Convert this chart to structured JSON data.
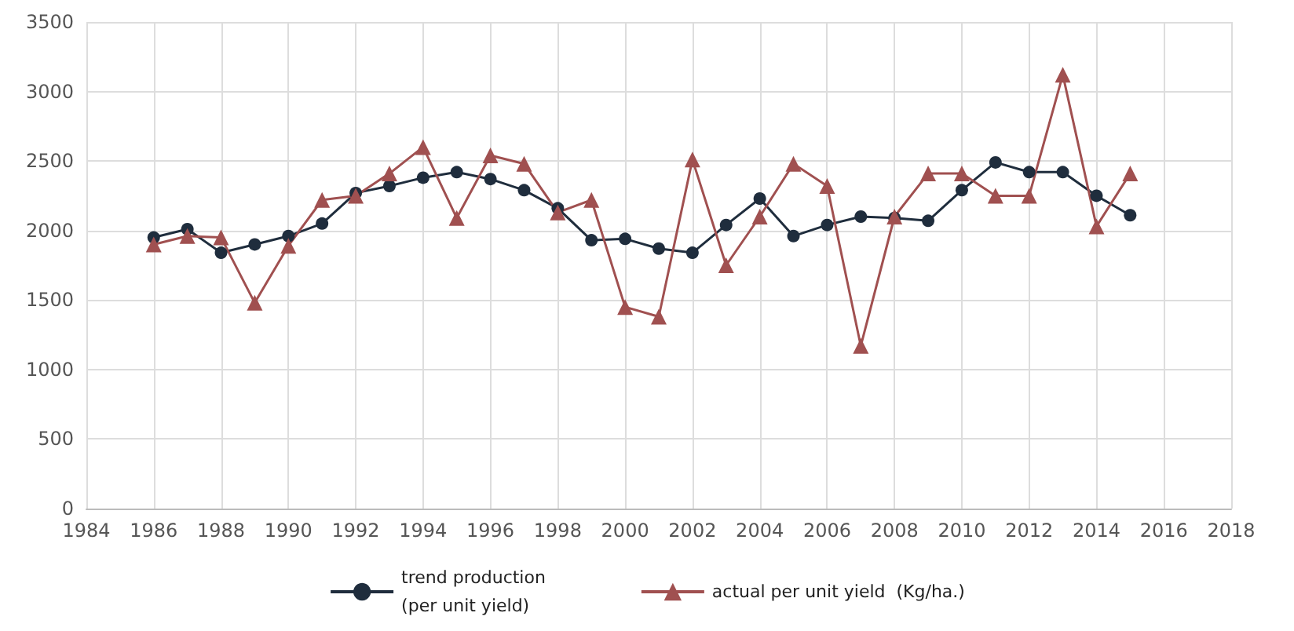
{
  "chart_data": {
    "type": "line",
    "x": [
      1986,
      1987,
      1988,
      1989,
      1990,
      1991,
      1992,
      1993,
      1994,
      1995,
      1996,
      1997,
      1998,
      1999,
      2000,
      2001,
      2002,
      2003,
      2004,
      2005,
      2006,
      2007,
      2008,
      2009,
      2010,
      2011,
      2012,
      2013,
      2014,
      2015
    ],
    "series": [
      {
        "name": "trend production\n(per unit yield)",
        "color": "#1f2d3d",
        "marker": "circle",
        "values": [
          1950,
          2010,
          1840,
          1900,
          1960,
          2050,
          2270,
          2320,
          2380,
          2420,
          2370,
          2290,
          2160,
          1930,
          1940,
          1870,
          1840,
          2040,
          2230,
          1960,
          2040,
          2100,
          2090,
          2070,
          2290,
          2490,
          2420,
          2420,
          2250,
          2110
        ]
      },
      {
        "name": "actual per unit yield  (Kg/ha.)",
        "color": "#a05050",
        "marker": "triangle",
        "values": [
          1900,
          1960,
          1950,
          1480,
          1890,
          2220,
          2250,
          2410,
          2600,
          2090,
          2540,
          2480,
          2130,
          2220,
          1450,
          1380,
          2510,
          1750,
          2100,
          2480,
          2320,
          1170,
          2100,
          2410,
          2410,
          2250,
          2250,
          3120,
          2030,
          2410
        ]
      }
    ],
    "xlim": [
      1984,
      2018
    ],
    "xticks": [
      1984,
      1986,
      1988,
      1990,
      1992,
      1994,
      1996,
      1998,
      2000,
      2002,
      2004,
      2006,
      2008,
      2010,
      2012,
      2014,
      2016,
      2018
    ],
    "ylim": [
      0,
      3500
    ],
    "yticks": [
      0,
      500,
      1000,
      1500,
      2000,
      2500,
      3000,
      3500
    ],
    "grid": true,
    "legend": "bottom",
    "line_style": "solid"
  }
}
